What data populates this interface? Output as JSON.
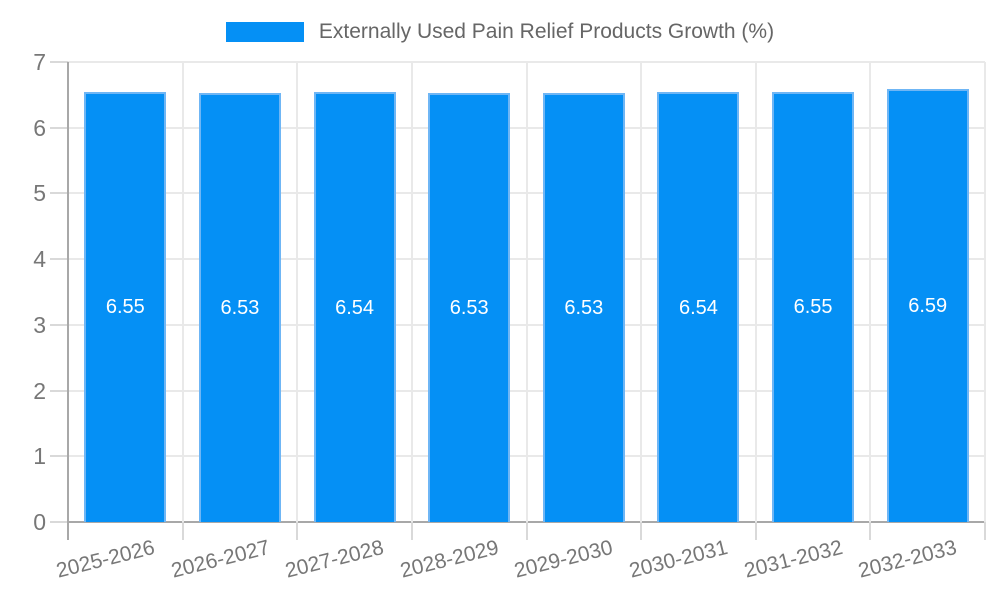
{
  "chart_data": {
    "type": "bar",
    "title": "Externally Used Pain Relief Products Growth (%)",
    "legend": {
      "label": "Externally Used Pain Relief Products Growth (%)",
      "position": "top"
    },
    "categories": [
      "2025-2026",
      "2026-2027",
      "2027-2028",
      "2028-2029",
      "2029-2030",
      "2030-2031",
      "2031-2032",
      "2032-2033"
    ],
    "series": [
      {
        "name": "Externally Used Pain Relief Products Growth (%)",
        "values": [
          6.55,
          6.53,
          6.54,
          6.53,
          6.53,
          6.54,
          6.55,
          6.59
        ]
      }
    ],
    "data_labels": [
      "6.55",
      "6.53",
      "6.54",
      "6.53",
      "6.53",
      "6.54",
      "6.55",
      "6.59"
    ],
    "xlabel": "",
    "ylabel": "",
    "ylim": [
      0,
      7
    ],
    "yticks": [
      0,
      1,
      2,
      3,
      4,
      5,
      6,
      7
    ],
    "grid": true,
    "colors": {
      "bar_fill": "#0590f5",
      "bar_border": "#6fb6f5",
      "gridline": "#e9e9e9",
      "axis_line": "#a8a8a8",
      "tick_mark": "#d9d9d9",
      "tick_label": "#777777",
      "legend_text": "#666666",
      "data_label": "#ffffff",
      "background": "#ffffff"
    }
  }
}
